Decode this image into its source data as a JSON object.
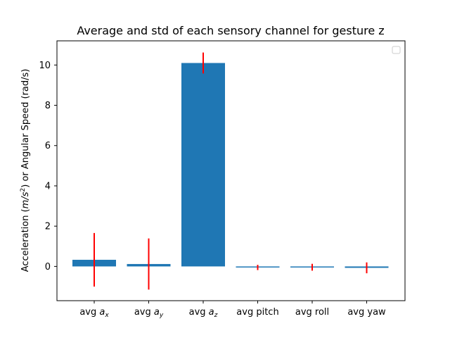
{
  "chart_data": {
    "type": "bar",
    "title": "Average and std of each sensory channel for gesture z",
    "ylabel": "Acceleration (m/s²) or Angular Speed (rad/s)",
    "xlabel": "",
    "categories": [
      {
        "label": "avg ",
        "sub": "x",
        "italic": "a"
      },
      {
        "label": "avg ",
        "sub": "y",
        "italic": "a"
      },
      {
        "label": "avg ",
        "sub": "z",
        "italic": "a"
      },
      {
        "label": "avg pitch",
        "sub": "",
        "italic": ""
      },
      {
        "label": "avg roll",
        "sub": "",
        "italic": ""
      },
      {
        "label": "avg yaw",
        "sub": "",
        "italic": ""
      }
    ],
    "values": [
      0.33,
      0.12,
      10.1,
      -0.05,
      -0.04,
      -0.07
    ],
    "std": [
      1.33,
      1.27,
      0.52,
      0.13,
      0.17,
      0.27
    ],
    "ylim": [
      -1.7,
      11.2
    ],
    "yticks": [
      0,
      2,
      4,
      6,
      8,
      10
    ],
    "bar_color": "#1f77b4",
    "errorbar_color": "#ff0000",
    "legend": "top-right",
    "grid": false
  }
}
